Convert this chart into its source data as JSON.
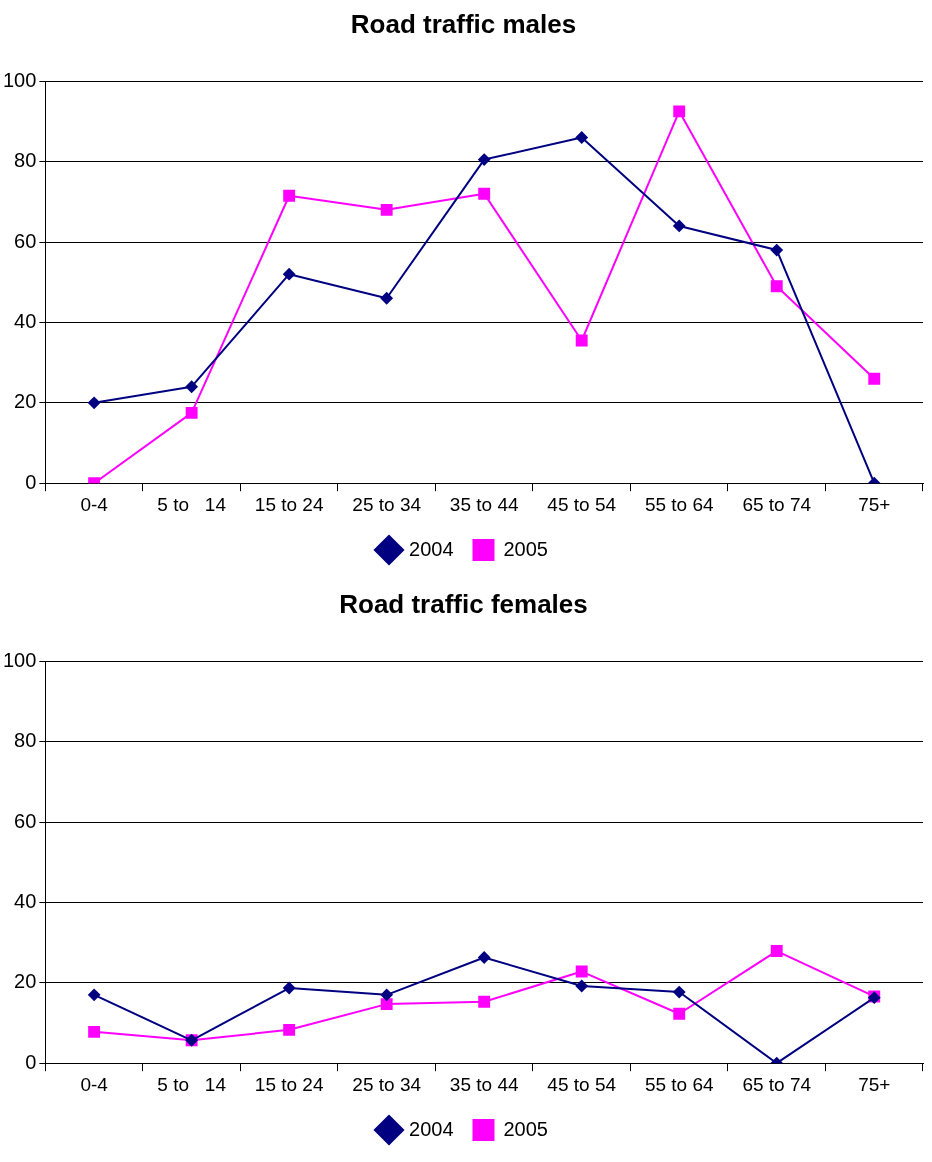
{
  "chart_data": [
    {
      "type": "line",
      "title": "Road traffic males",
      "categories": [
        "0-4",
        "5 to   14",
        "15 to 24",
        "25 to 34",
        "35 to 44",
        "45 to 54",
        "55 to 64",
        "65 to 74",
        "75+"
      ],
      "series": [
        {
          "name": "2004",
          "color": "#000080",
          "marker": "diamond",
          "values": [
            20,
            24,
            52,
            46,
            80.5,
            86,
            64,
            58,
            0
          ]
        },
        {
          "name": "2005",
          "color": "#ff00ff",
          "marker": "square",
          "values": [
            0,
            17.5,
            71.5,
            68,
            72,
            35.5,
            92.5,
            49,
            26
          ]
        }
      ],
      "ylim": [
        0,
        100
      ],
      "yticks": [
        0,
        20,
        40,
        60,
        80,
        100
      ],
      "grid": "y",
      "legend": "bottom"
    },
    {
      "type": "line",
      "title": "Road traffic females",
      "categories": [
        "0-4",
        "5 to   14",
        "15 to 24",
        "25 to 34",
        "35 to 44",
        "45 to 54",
        "55 to 64",
        "65 to 74",
        "75+"
      ],
      "series": [
        {
          "name": "2004",
          "color": "#000080",
          "marker": "diamond",
          "values": [
            17,
            5.7,
            18.7,
            17,
            26.3,
            19.2,
            17.7,
            0,
            16.3
          ]
        },
        {
          "name": "2005",
          "color": "#ff00ff",
          "marker": "square",
          "values": [
            7.8,
            5.7,
            8.3,
            14.7,
            15.3,
            22.8,
            12.3,
            27.9,
            16.6
          ]
        }
      ],
      "ylim": [
        0,
        100
      ],
      "yticks": [
        0,
        20,
        40,
        60,
        80,
        100
      ],
      "grid": "y",
      "legend": "bottom"
    }
  ]
}
